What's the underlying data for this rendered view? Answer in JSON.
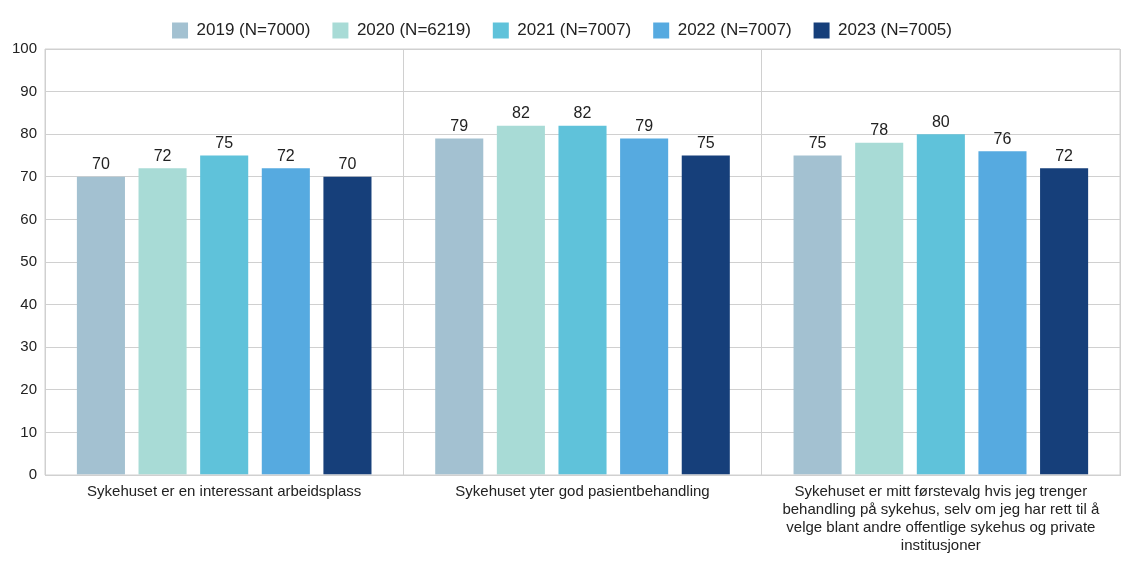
{
  "chart_data": {
    "type": "bar",
    "categories": [
      "Sykehuset er en interessant arbeidsplass",
      "Sykehuset yter god pasientbehandling",
      "Sykehuset er mitt førstevalg hvis jeg trenger behandling på sykehus, selv om jeg har rett til å velge blant andre offentlige sykehus og private institusjoner"
    ],
    "series": [
      {
        "name": "2019 (N=7000)",
        "color": "#a3c1d1",
        "values": [
          70,
          79,
          75
        ]
      },
      {
        "name": "2020 (N=6219)",
        "color": "#a8dbd6",
        "values": [
          72,
          82,
          78
        ]
      },
      {
        "name": "2021 (N=7007)",
        "color": "#5fc2da",
        "values": [
          75,
          82,
          80
        ]
      },
      {
        "name": "2022 (N=7007)",
        "color": "#56aae0",
        "values": [
          72,
          79,
          76
        ]
      },
      {
        "name": "2023 (N=7005)",
        "color": "#163f7a",
        "values": [
          70,
          75,
          72
        ]
      }
    ],
    "ylim": [
      0,
      100
    ],
    "yticks": [
      0,
      10,
      20,
      30,
      40,
      50,
      60,
      70,
      80,
      90,
      100
    ],
    "grid": true,
    "legend": "top",
    "data_labels": true
  }
}
